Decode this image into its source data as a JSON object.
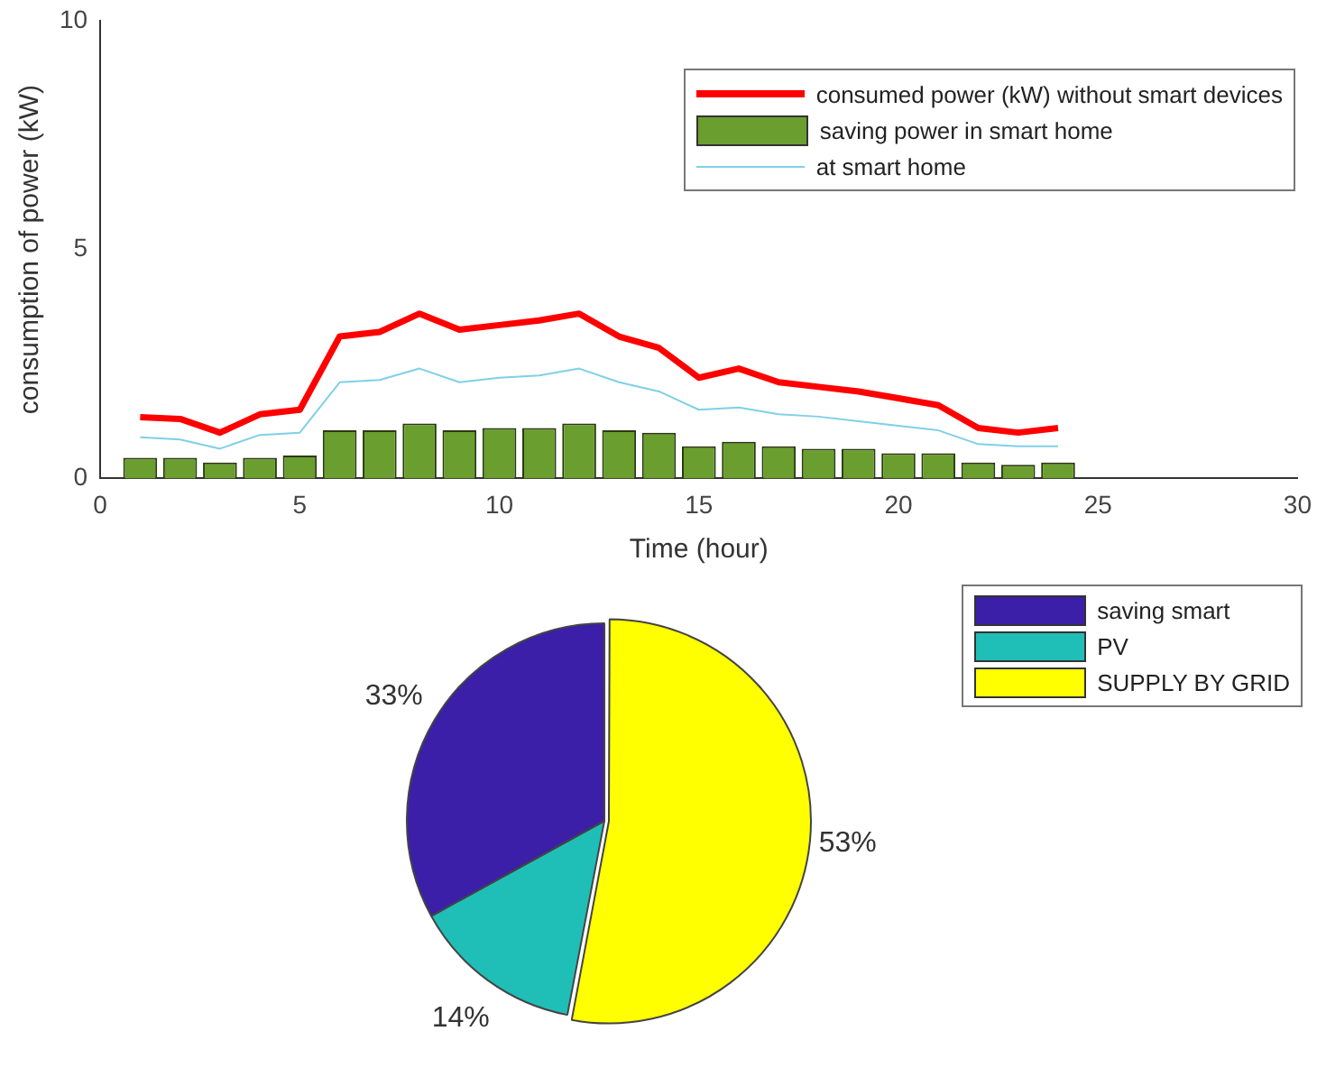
{
  "chart_data": [
    {
      "type": "bar",
      "xlabel": "Time (hour)",
      "ylabel": "consumption of power (kW)",
      "x": [
        1,
        2,
        3,
        4,
        5,
        6,
        7,
        8,
        9,
        10,
        11,
        12,
        13,
        14,
        15,
        16,
        17,
        18,
        19,
        20,
        21,
        22,
        23,
        24
      ],
      "series": [
        {
          "type": "line",
          "name": "consumed power (kW) without smart devices",
          "color": "#ff0000",
          "values": [
            1.34,
            1.3,
            1.0,
            1.4,
            1.5,
            3.1,
            3.2,
            3.6,
            3.25,
            3.35,
            3.45,
            3.6,
            3.1,
            2.85,
            2.2,
            2.4,
            2.1,
            2.0,
            1.9,
            1.75,
            1.6,
            1.1,
            1.0,
            1.1
          ]
        },
        {
          "type": "bar",
          "name": "saving power in smart home",
          "color": "#6a9e2e",
          "values": [
            0.45,
            0.45,
            0.35,
            0.45,
            0.5,
            1.05,
            1.05,
            1.2,
            1.05,
            1.1,
            1.1,
            1.2,
            1.05,
            1.0,
            0.7,
            0.8,
            0.7,
            0.65,
            0.65,
            0.55,
            0.55,
            0.35,
            0.3,
            0.35
          ]
        },
        {
          "type": "line",
          "name": "at smart home",
          "color": "#7fd0e8",
          "values": [
            0.9,
            0.85,
            0.65,
            0.95,
            1.0,
            2.1,
            2.15,
            2.4,
            2.1,
            2.2,
            2.25,
            2.4,
            2.1,
            1.9,
            1.5,
            1.55,
            1.4,
            1.35,
            1.25,
            1.15,
            1.05,
            0.75,
            0.7,
            0.7
          ]
        }
      ],
      "xlim": [
        0,
        30
      ],
      "xticks": [
        0,
        5,
        10,
        15,
        20,
        25,
        30
      ],
      "ylim": [
        0,
        10
      ],
      "yticks": [
        0,
        5,
        10
      ],
      "grid": false,
      "legend": "top right",
      "marker": "none"
    },
    {
      "type": "pie",
      "categories": [
        "saving smart",
        "PV",
        "SUPPLY BY GRID"
      ],
      "values": [
        33,
        14,
        53
      ],
      "colors": [
        "#3b1fa8",
        "#1fbfb8",
        "#ffff00"
      ],
      "value_labels": [
        "33%",
        "14%",
        "53%"
      ],
      "legend": "top right"
    }
  ]
}
